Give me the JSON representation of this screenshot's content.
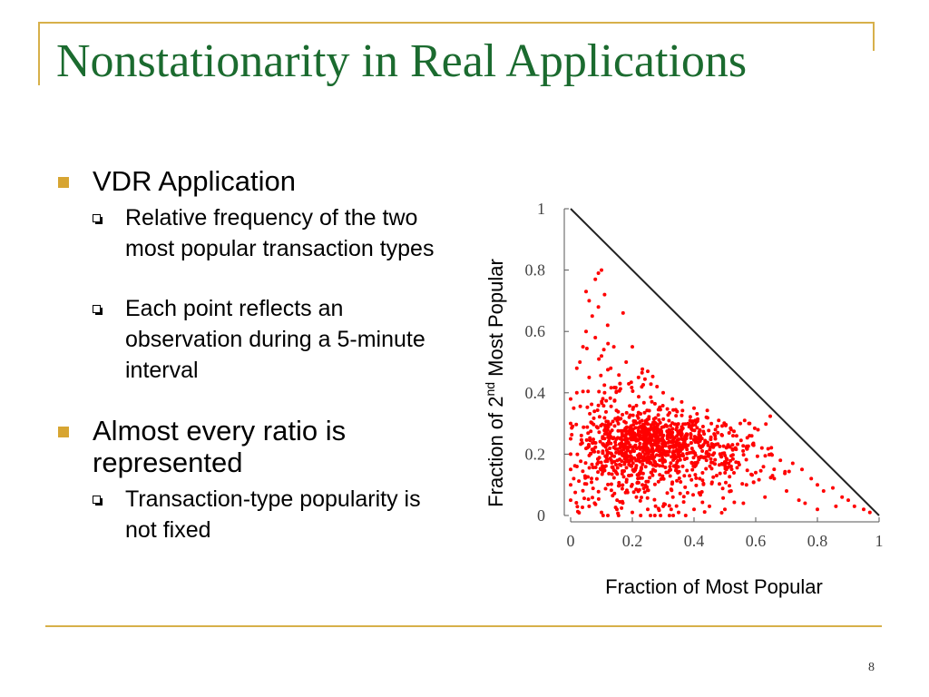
{
  "slide": {
    "title": "Nonstationarity in Real Applications",
    "page_number": "8",
    "colors": {
      "title": "#1b6b2f",
      "accent_line": "#d7b04a",
      "bullet": "#d7a532",
      "points": "#ff0000"
    },
    "bullets": [
      {
        "text": "VDR Application",
        "children": [
          {
            "text": "Relative frequency of the two most popular transaction types"
          },
          {
            "text": "Each point reflects an observation during a 5-minute interval"
          }
        ]
      },
      {
        "text": "Almost every ratio is represented",
        "children": [
          {
            "text": "Transaction-type popularity is not fixed"
          }
        ]
      }
    ]
  },
  "chart_data": {
    "type": "scatter",
    "xlabel": "Fraction of Most Popular",
    "ylabel": {
      "prefix": "Fraction of 2",
      "superscript": "nd",
      "suffix": " Most Popular"
    },
    "xlim": [
      0,
      1
    ],
    "ylim": [
      0,
      1
    ],
    "xticks": [
      "0",
      "0.2",
      "0.4",
      "0.6",
      "0.8",
      "1"
    ],
    "yticks": [
      "0",
      "0.2",
      "0.4",
      "0.6",
      "0.8",
      "1"
    ],
    "boundary_line": {
      "from": [
        0,
        1
      ],
      "to": [
        1,
        0
      ]
    },
    "grid": false,
    "legend": "none",
    "point_color": "#ff0000",
    "series": [
      {
        "points": [
          [
            0.05,
            0.73
          ],
          [
            0.08,
            0.77
          ],
          [
            0.09,
            0.79
          ],
          [
            0.1,
            0.8
          ],
          [
            0.06,
            0.7
          ],
          [
            0.07,
            0.65
          ],
          [
            0.09,
            0.68
          ],
          [
            0.11,
            0.72
          ],
          [
            0.12,
            0.62
          ],
          [
            0.05,
            0.6
          ],
          [
            0.08,
            0.58
          ],
          [
            0.14,
            0.55
          ],
          [
            0.1,
            0.52
          ],
          [
            0.17,
            0.66
          ],
          [
            0.04,
            0.55
          ],
          [
            0.13,
            0.48
          ],
          [
            0.18,
            0.5
          ],
          [
            0.22,
            0.45
          ],
          [
            0.25,
            0.47
          ],
          [
            0.2,
            0.55
          ],
          [
            0.16,
            0.43
          ],
          [
            0.06,
            0.45
          ],
          [
            0.11,
            0.4
          ],
          [
            0.28,
            0.42
          ],
          [
            0.3,
            0.4
          ],
          [
            0.33,
            0.38
          ],
          [
            0.03,
            0.5
          ],
          [
            0.02,
            0.48
          ],
          [
            0.0,
            0.38
          ],
          [
            0.0,
            0.3
          ],
          [
            0.0,
            0.25
          ],
          [
            0.0,
            0.2
          ],
          [
            0.0,
            0.15
          ],
          [
            0.0,
            0.1
          ],
          [
            0.0,
            0.05
          ],
          [
            0.01,
            0.35
          ],
          [
            0.01,
            0.12
          ],
          [
            0.02,
            0.4
          ],
          [
            0.36,
            0.37
          ],
          [
            0.4,
            0.35
          ],
          [
            0.44,
            0.32
          ],
          [
            0.48,
            0.31
          ],
          [
            0.52,
            0.28
          ],
          [
            0.55,
            0.3
          ],
          [
            0.58,
            0.26
          ],
          [
            0.62,
            0.22
          ],
          [
            0.65,
            0.2
          ],
          [
            0.68,
            0.18
          ],
          [
            0.72,
            0.17
          ],
          [
            0.75,
            0.15
          ],
          [
            0.78,
            0.12
          ],
          [
            0.8,
            0.1
          ],
          [
            0.82,
            0.08
          ],
          [
            0.85,
            0.09
          ],
          [
            0.88,
            0.06
          ],
          [
            0.9,
            0.05
          ],
          [
            0.92,
            0.03
          ],
          [
            0.95,
            0.02
          ],
          [
            0.97,
            0.01
          ],
          [
            0.7,
            0.08
          ],
          [
            0.74,
            0.05
          ],
          [
            0.66,
            0.12
          ],
          [
            0.6,
            0.14
          ],
          [
            0.63,
            0.06
          ],
          [
            0.56,
            0.04
          ],
          [
            0.5,
            0.02
          ],
          [
            0.45,
            0.03
          ],
          [
            0.4,
            0.02
          ],
          [
            0.35,
            0.01
          ],
          [
            0.3,
            0.03
          ],
          [
            0.25,
            0.02
          ],
          [
            0.2,
            0.01
          ],
          [
            0.15,
            0.02
          ],
          [
            0.1,
            0.01
          ],
          [
            0.06,
            0.03
          ],
          [
            0.8,
            0.02
          ],
          [
            0.86,
            0.03
          ],
          [
            0.76,
            0.04
          ],
          [
            0.57,
            0.1
          ],
          [
            0.52,
            0.08
          ]
        ],
        "clusters": [
          {
            "center": [
              0.26,
              0.24
            ],
            "spread": [
              0.09,
              0.045
            ],
            "count": 520
          },
          {
            "center": [
              0.18,
              0.16
            ],
            "spread": [
              0.13,
              0.09
            ],
            "count": 340
          },
          {
            "center": [
              0.48,
              0.2
            ],
            "spread": [
              0.1,
              0.06
            ],
            "count": 220
          },
          {
            "center": [
              0.14,
              0.32
            ],
            "spread": [
              0.08,
              0.1
            ],
            "count": 120
          }
        ]
      }
    ]
  }
}
